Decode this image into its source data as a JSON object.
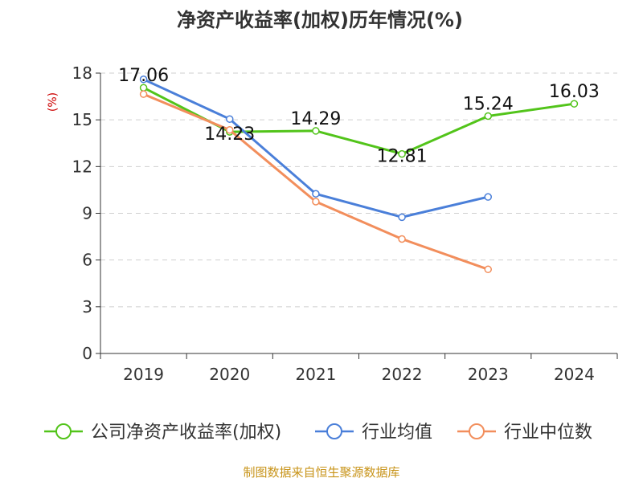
{
  "chart_data": {
    "type": "line",
    "title": "净资产收益率(加权)历年情况(%)",
    "ylabel": "(%)",
    "xlabel": "",
    "categories": [
      "2019",
      "2020",
      "2021",
      "2022",
      "2023",
      "2024"
    ],
    "ylim": [
      0,
      18
    ],
    "yticks": [
      0,
      3,
      6,
      9,
      12,
      15,
      18
    ],
    "grid": true,
    "legend_position": "bottom",
    "series": [
      {
        "name": "公司净资产收益率(加权)",
        "color": "#52c41a",
        "values": [
          17.06,
          14.23,
          14.29,
          12.81,
          15.24,
          16.03
        ],
        "labels": [
          "17.06",
          "14.23",
          "14.29",
          "12.81",
          "15.24",
          "16.03"
        ]
      },
      {
        "name": "行业均值",
        "color": "#4a7fd9",
        "values": [
          17.6,
          15.05,
          10.25,
          8.75,
          10.05,
          null
        ]
      },
      {
        "name": "行业中位数",
        "color": "#f28e5c",
        "values": [
          16.65,
          14.35,
          9.75,
          7.35,
          5.4,
          null
        ]
      }
    ],
    "source": "制图数据来自恒生聚源数据库"
  }
}
